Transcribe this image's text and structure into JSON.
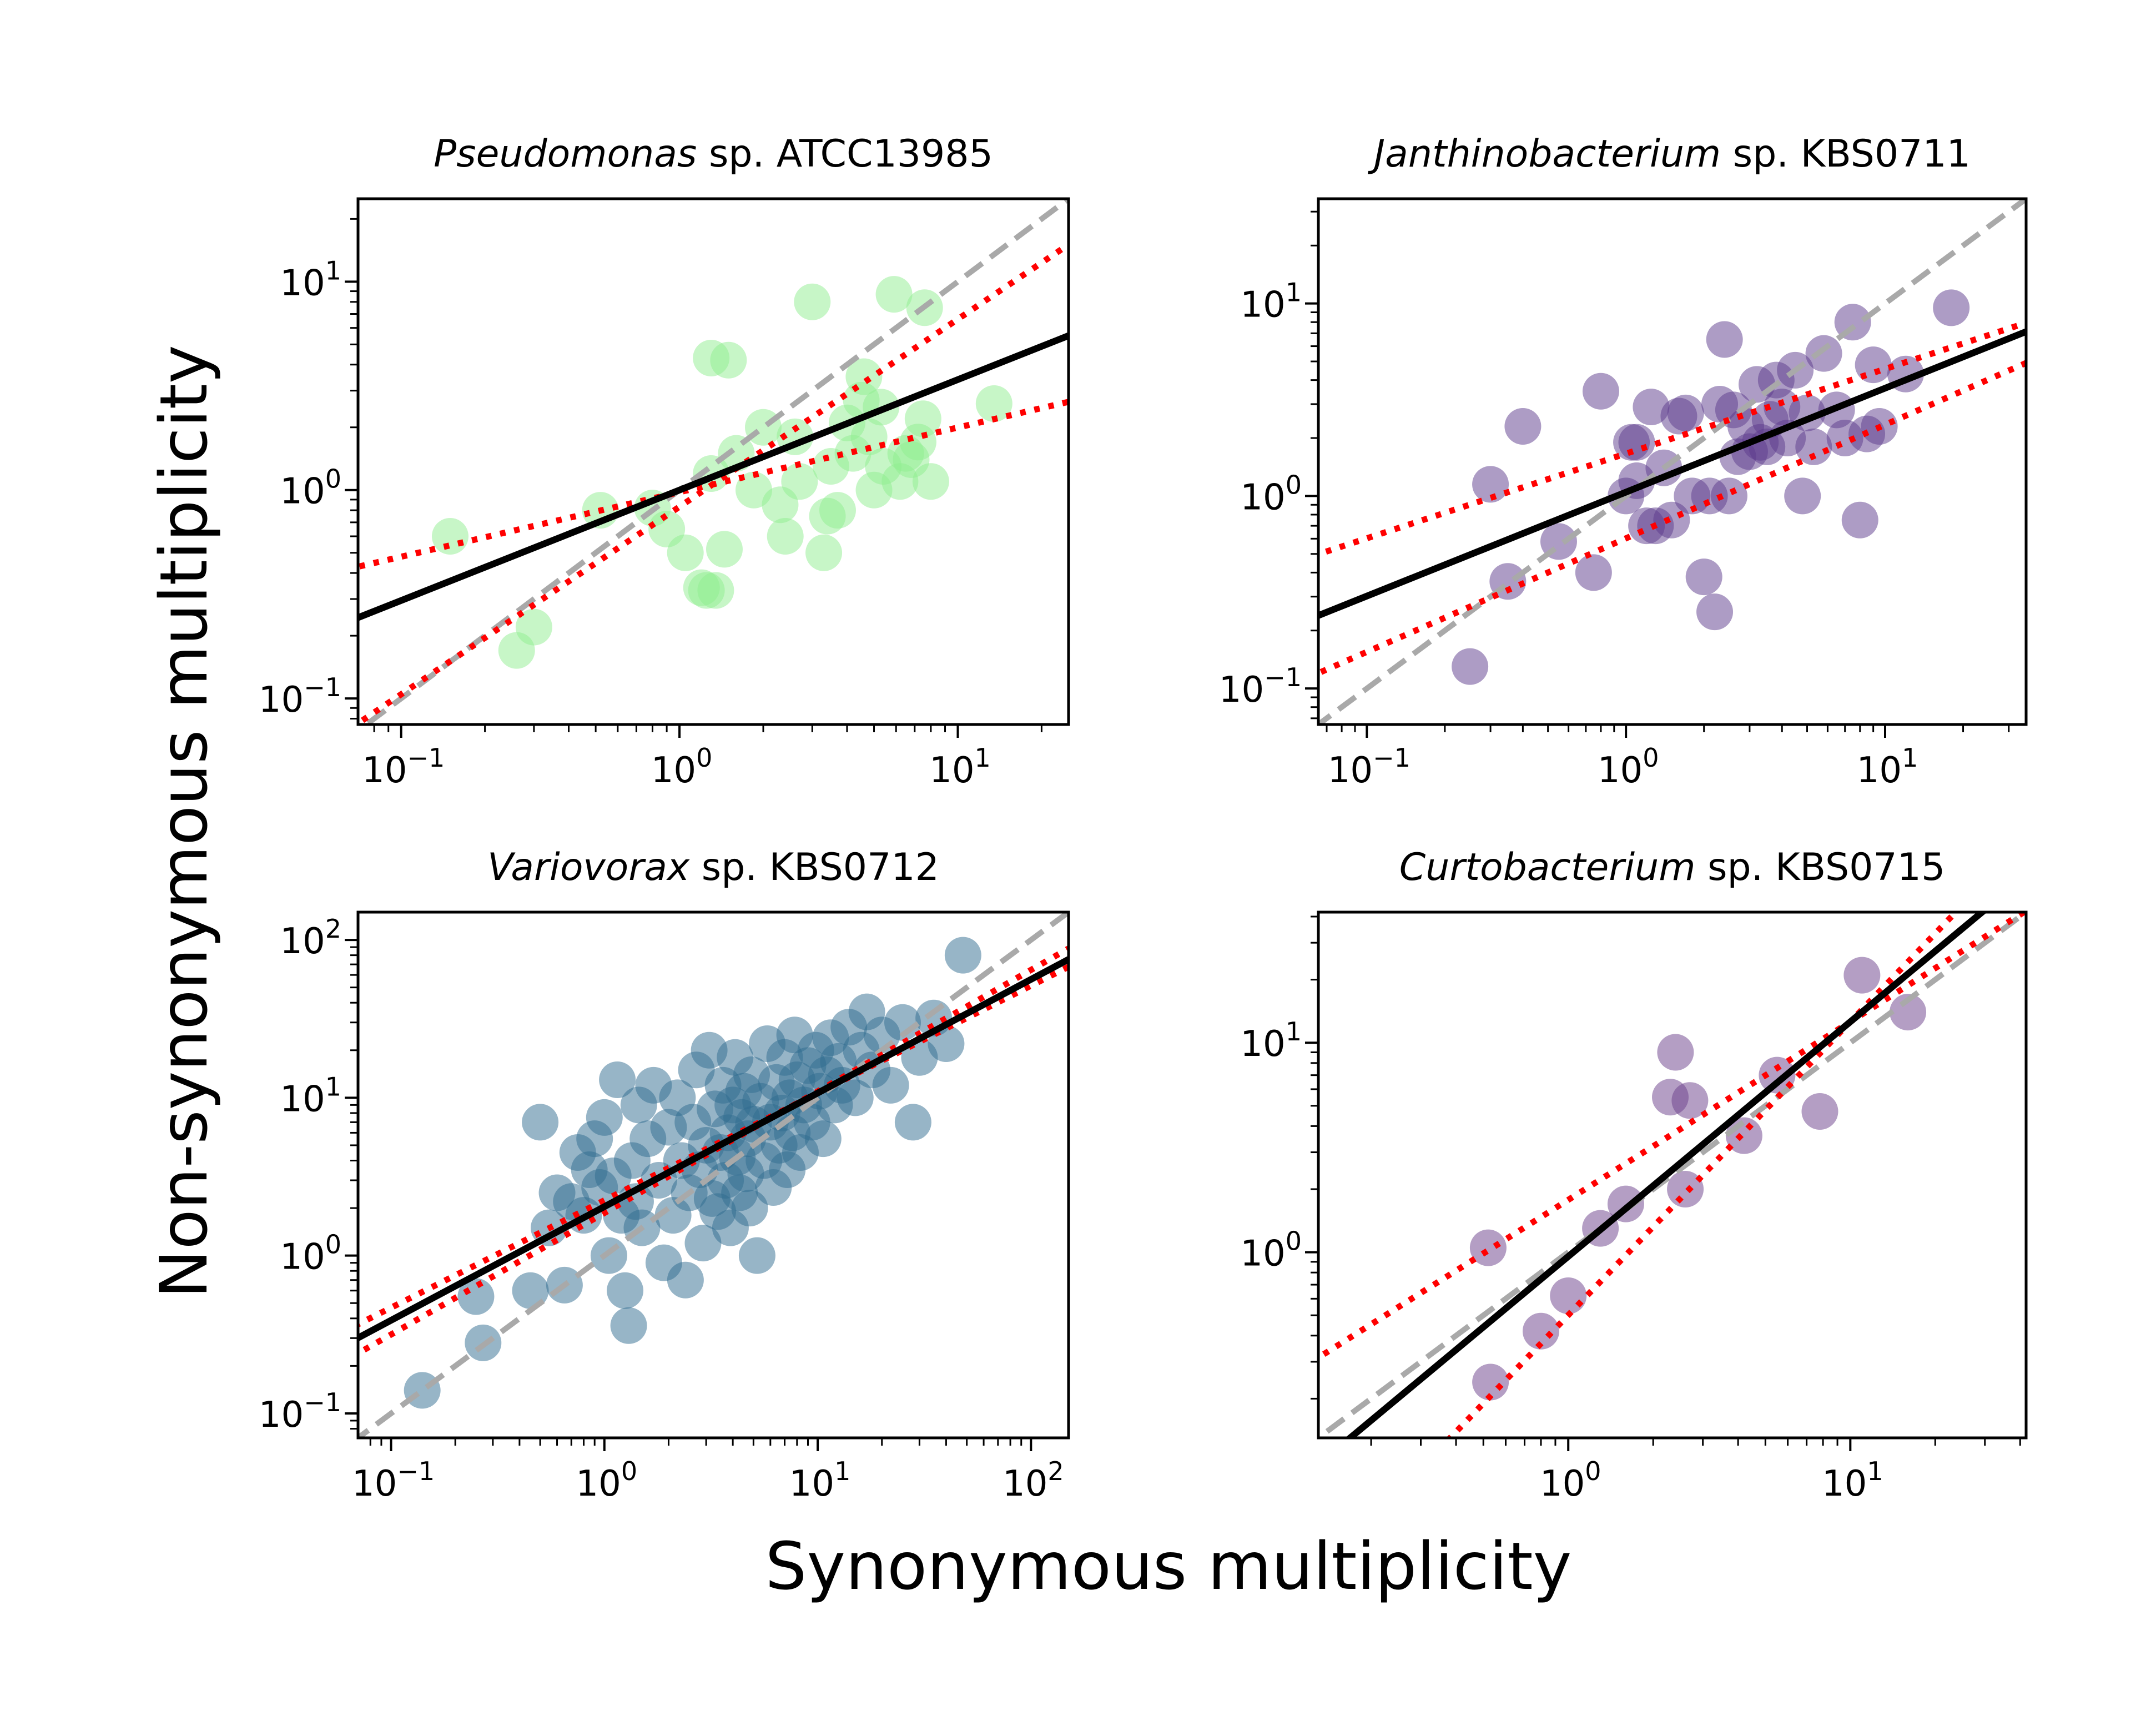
{
  "figure": {
    "xlabel": "Synonymous multiplicity",
    "ylabel": "Non-synonymous multiplicity"
  },
  "colors": {
    "fit_line": "#000000",
    "ci_lines": "#ff0000",
    "one_to_one": "#a9a9a9"
  },
  "chart_data": [
    {
      "type": "scatter",
      "title_italic": "Pseudomonas",
      "title_rest": "sp. ATCC13985",
      "xscale": "log",
      "yscale": "log",
      "xlim": [
        0.07,
        25
      ],
      "ylim": [
        0.075,
        25
      ],
      "xticks": [
        {
          "v": 0.1,
          "t": "10",
          "e": "−1"
        },
        {
          "v": 1,
          "t": "10",
          "e": "0"
        },
        {
          "v": 10,
          "t": "10",
          "e": "1"
        }
      ],
      "yticks": [
        {
          "v": 0.1,
          "t": "10",
          "e": "−1"
        },
        {
          "v": 1,
          "t": "10",
          "e": "0"
        },
        {
          "v": 10,
          "t": "10",
          "e": "1"
        }
      ],
      "color": "#90ee90",
      "fit": {
        "slope": 0.53,
        "intercept_log10": 0.0
      },
      "ci": [
        {
          "slope": 0.31,
          "intercept_log10": -0.01
        },
        {
          "slope": 0.9,
          "intercept_log10": -0.08
        }
      ],
      "one_to_one": true,
      "points": [
        [
          0.15,
          0.6
        ],
        [
          0.26,
          0.17
        ],
        [
          0.3,
          0.22
        ],
        [
          0.52,
          0.8
        ],
        [
          0.8,
          0.82
        ],
        [
          0.9,
          0.65
        ],
        [
          1.05,
          0.5
        ],
        [
          1.2,
          0.34
        ],
        [
          1.25,
          0.33
        ],
        [
          1.35,
          0.33
        ],
        [
          1.3,
          4.3
        ],
        [
          1.5,
          4.2
        ],
        [
          1.3,
          1.2
        ],
        [
          1.45,
          0.52
        ],
        [
          1.6,
          1.5
        ],
        [
          1.85,
          1.0
        ],
        [
          2.0,
          2.0
        ],
        [
          2.3,
          0.85
        ],
        [
          2.4,
          0.6
        ],
        [
          2.7,
          1.1
        ],
        [
          2.6,
          1.8
        ],
        [
          3.0,
          8.0
        ],
        [
          3.3,
          0.5
        ],
        [
          3.4,
          0.75
        ],
        [
          3.7,
          0.8
        ],
        [
          3.5,
          1.3
        ],
        [
          4.0,
          2.1
        ],
        [
          4.2,
          1.5
        ],
        [
          4.5,
          2.7
        ],
        [
          4.6,
          3.5
        ],
        [
          4.8,
          1.8
        ],
        [
          5.0,
          1.0
        ],
        [
          5.3,
          2.5
        ],
        [
          5.4,
          1.3
        ],
        [
          5.9,
          8.7
        ],
        [
          6.2,
          1.1
        ],
        [
          6.5,
          1.5
        ],
        [
          6.8,
          1.4
        ],
        [
          7.2,
          1.7
        ],
        [
          7.6,
          7.5
        ],
        [
          7.5,
          2.2
        ],
        [
          8.0,
          1.1
        ],
        [
          13.5,
          2.6
        ]
      ]
    },
    {
      "type": "scatter",
      "title_italic": "Janthinobacterium",
      "title_rest": "sp. KBS0711",
      "xscale": "log",
      "yscale": "log",
      "xlim": [
        0.065,
        35
      ],
      "ylim": [
        0.065,
        35
      ],
      "xticks": [
        {
          "v": 0.1,
          "t": "10",
          "e": "−1"
        },
        {
          "v": 1,
          "t": "10",
          "e": "0"
        },
        {
          "v": 10,
          "t": "10",
          "e": "1"
        }
      ],
      "yticks": [
        {
          "v": 0.1,
          "t": "10",
          "e": "−1"
        },
        {
          "v": 1,
          "t": "10",
          "e": "0"
        },
        {
          "v": 10,
          "t": "10",
          "e": "1"
        }
      ],
      "color": "#5b3a8c",
      "fit": {
        "slope": 0.54,
        "intercept_log10": 0.02
      },
      "ci": [
        {
          "slope": 0.44,
          "intercept_log10": 0.22
        },
        {
          "slope": 0.59,
          "intercept_log10": -0.22
        }
      ],
      "one_to_one": true,
      "points": [
        [
          0.25,
          0.13
        ],
        [
          0.3,
          1.15
        ],
        [
          0.35,
          0.36
        ],
        [
          0.4,
          2.3
        ],
        [
          0.55,
          0.58
        ],
        [
          0.8,
          3.5
        ],
        [
          0.75,
          0.4
        ],
        [
          1.05,
          1.9
        ],
        [
          1.1,
          1.9
        ],
        [
          1.1,
          1.2
        ],
        [
          1.0,
          1.0
        ],
        [
          1.2,
          0.7
        ],
        [
          1.25,
          2.9
        ],
        [
          1.3,
          0.7
        ],
        [
          1.4,
          1.4
        ],
        [
          1.5,
          0.75
        ],
        [
          1.6,
          2.6
        ],
        [
          1.7,
          2.7
        ],
        [
          1.8,
          1.0
        ],
        [
          2.0,
          0.38
        ],
        [
          2.1,
          1.0
        ],
        [
          2.2,
          0.25
        ],
        [
          2.3,
          3.0
        ],
        [
          2.4,
          6.5
        ],
        [
          2.5,
          1.0
        ],
        [
          2.6,
          2.8
        ],
        [
          2.7,
          1.6
        ],
        [
          2.9,
          2.3
        ],
        [
          3.0,
          1.7
        ],
        [
          3.2,
          3.8
        ],
        [
          3.3,
          1.9
        ],
        [
          3.5,
          1.8
        ],
        [
          3.6,
          2.5
        ],
        [
          3.8,
          4.0
        ],
        [
          4.0,
          2.9
        ],
        [
          4.2,
          2.0
        ],
        [
          4.5,
          4.5
        ],
        [
          4.8,
          1.0
        ],
        [
          5.0,
          2.7
        ],
        [
          5.3,
          1.8
        ],
        [
          5.8,
          5.5
        ],
        [
          6.5,
          2.8
        ],
        [
          7.0,
          2.0
        ],
        [
          7.5,
          8.0
        ],
        [
          8.0,
          0.75
        ],
        [
          8.5,
          2.1
        ],
        [
          9.0,
          4.8
        ],
        [
          9.5,
          2.3
        ],
        [
          12.0,
          4.3
        ],
        [
          18.0,
          9.5
        ]
      ]
    },
    {
      "type": "scatter",
      "title_italic": "Variovorax",
      "title_rest": "sp. KBS0712",
      "xscale": "log",
      "yscale": "log",
      "xlim": [
        0.07,
        150
      ],
      "ylim": [
        0.07,
        150
      ],
      "xticks": [
        {
          "v": 0.1,
          "t": "10",
          "e": "−1"
        },
        {
          "v": 1,
          "t": "10",
          "e": "0"
        },
        {
          "v": 10,
          "t": "10",
          "e": "1"
        },
        {
          "v": 100,
          "t": "10",
          "e": "2"
        }
      ],
      "yticks": [
        {
          "v": 0.1,
          "t": "10",
          "e": "−1"
        },
        {
          "v": 1,
          "t": "10",
          "e": "0"
        },
        {
          "v": 10,
          "t": "10",
          "e": "1"
        },
        {
          "v": 100,
          "t": "10",
          "e": "2"
        }
      ],
      "color": "#2f6b8f",
      "fit": {
        "slope": 0.72,
        "intercept_log10": 0.31
      },
      "ci": [
        {
          "slope": 0.68,
          "intercept_log10": 0.35
        },
        {
          "slope": 0.77,
          "intercept_log10": 0.27
        }
      ],
      "one_to_one": true,
      "points": [
        [
          0.14,
          0.14
        ],
        [
          0.25,
          0.55
        ],
        [
          0.27,
          0.28
        ],
        [
          0.45,
          0.6
        ],
        [
          0.5,
          7.0
        ],
        [
          0.55,
          1.5
        ],
        [
          0.6,
          2.5
        ],
        [
          0.65,
          0.65
        ],
        [
          0.7,
          2.2
        ],
        [
          0.75,
          4.5
        ],
        [
          0.8,
          1.8
        ],
        [
          0.85,
          3.5
        ],
        [
          0.9,
          5.5
        ],
        [
          0.95,
          2.7
        ],
        [
          1.0,
          7.5
        ],
        [
          1.05,
          1.0
        ],
        [
          1.1,
          3.2
        ],
        [
          1.15,
          13.0
        ],
        [
          1.2,
          1.8
        ],
        [
          1.25,
          0.6
        ],
        [
          1.3,
          0.36
        ],
        [
          1.35,
          4.0
        ],
        [
          1.4,
          2.2
        ],
        [
          1.45,
          9.0
        ],
        [
          1.5,
          1.5
        ],
        [
          1.6,
          5.5
        ],
        [
          1.7,
          12.0
        ],
        [
          1.8,
          3.0
        ],
        [
          1.9,
          0.9
        ],
        [
          2.0,
          6.5
        ],
        [
          2.1,
          1.8
        ],
        [
          2.2,
          10.0
        ],
        [
          2.3,
          4.0
        ],
        [
          2.4,
          0.7
        ],
        [
          2.5,
          2.5
        ],
        [
          2.6,
          7.0
        ],
        [
          2.7,
          15.0
        ],
        [
          2.8,
          3.5
        ],
        [
          2.9,
          1.2
        ],
        [
          3.0,
          5.0
        ],
        [
          3.1,
          20.0
        ],
        [
          3.2,
          2.3
        ],
        [
          3.3,
          8.5
        ],
        [
          3.4,
          1.9
        ],
        [
          3.5,
          4.5
        ],
        [
          3.6,
          12.0
        ],
        [
          3.7,
          3.0
        ],
        [
          3.8,
          6.0
        ],
        [
          3.9,
          1.5
        ],
        [
          4.0,
          9.0
        ],
        [
          4.1,
          18.0
        ],
        [
          4.2,
          4.2
        ],
        [
          4.3,
          2.5
        ],
        [
          4.4,
          7.5
        ],
        [
          4.5,
          11.0
        ],
        [
          4.6,
          3.3
        ],
        [
          4.7,
          5.5
        ],
        [
          4.8,
          2.0
        ],
        [
          4.9,
          14.0
        ],
        [
          5.0,
          6.8
        ],
        [
          5.2,
          1.0
        ],
        [
          5.4,
          9.5
        ],
        [
          5.6,
          4.0
        ],
        [
          5.8,
          22.0
        ],
        [
          6.0,
          7.0
        ],
        [
          6.2,
          2.7
        ],
        [
          6.4,
          12.5
        ],
        [
          6.6,
          5.0
        ],
        [
          6.8,
          8.0
        ],
        [
          7.0,
          18.0
        ],
        [
          7.2,
          3.5
        ],
        [
          7.4,
          10.0
        ],
        [
          7.6,
          6.0
        ],
        [
          7.8,
          25.0
        ],
        [
          8.0,
          13.0
        ],
        [
          8.3,
          4.5
        ],
        [
          8.6,
          9.0
        ],
        [
          9.0,
          16.0
        ],
        [
          9.4,
          7.0
        ],
        [
          9.8,
          20.0
        ],
        [
          10.2,
          11.0
        ],
        [
          10.6,
          5.5
        ],
        [
          11.0,
          14.0
        ],
        [
          11.5,
          24.0
        ],
        [
          12.0,
          9.0
        ],
        [
          12.5,
          17.0
        ],
        [
          13.0,
          12.0
        ],
        [
          14.0,
          28.0
        ],
        [
          15.0,
          10.0
        ],
        [
          16.0,
          20.0
        ],
        [
          17.0,
          35.0
        ],
        [
          18.0,
          15.0
        ],
        [
          20.0,
          25.0
        ],
        [
          22.0,
          12.0
        ],
        [
          25.0,
          30.0
        ],
        [
          28.0,
          7.0
        ],
        [
          30.0,
          18.0
        ],
        [
          35.0,
          32.0
        ],
        [
          40.0,
          22.0
        ],
        [
          48.0,
          80.0
        ]
      ]
    },
    {
      "type": "scatter",
      "title_italic": "Curtobacterium",
      "title_rest": "sp. KBS0715",
      "xscale": "log",
      "yscale": "log",
      "xlim": [
        0.13,
        42
      ],
      "ylim": [
        0.13,
        42
      ],
      "xticks": [
        {
          "v": 1,
          "t": "10",
          "e": "0"
        },
        {
          "v": 10,
          "t": "10",
          "e": "1"
        }
      ],
      "yticks": [
        {
          "v": 1,
          "t": "10",
          "e": "0"
        },
        {
          "v": 10,
          "t": "10",
          "e": "1"
        }
      ],
      "color": "#6a3d8a",
      "fit": {
        "slope": 1.12,
        "intercept_log10": -0.02
      },
      "ci": [
        {
          "slope": 0.85,
          "intercept_log10": 0.25
        },
        {
          "slope": 1.4,
          "intercept_log10": -0.3
        }
      ],
      "one_to_one": true,
      "points": [
        [
          0.52,
          1.05
        ],
        [
          0.53,
          0.24
        ],
        [
          0.8,
          0.42
        ],
        [
          1.0,
          0.62
        ],
        [
          1.3,
          1.3
        ],
        [
          1.6,
          1.7
        ],
        [
          2.3,
          5.5
        ],
        [
          2.4,
          9.0
        ],
        [
          2.6,
          2.0
        ],
        [
          2.7,
          5.3
        ],
        [
          4.2,
          3.6
        ],
        [
          5.5,
          7.0
        ],
        [
          7.8,
          4.7
        ],
        [
          11.0,
          21.0
        ],
        [
          16.0,
          14.0
        ]
      ]
    }
  ]
}
